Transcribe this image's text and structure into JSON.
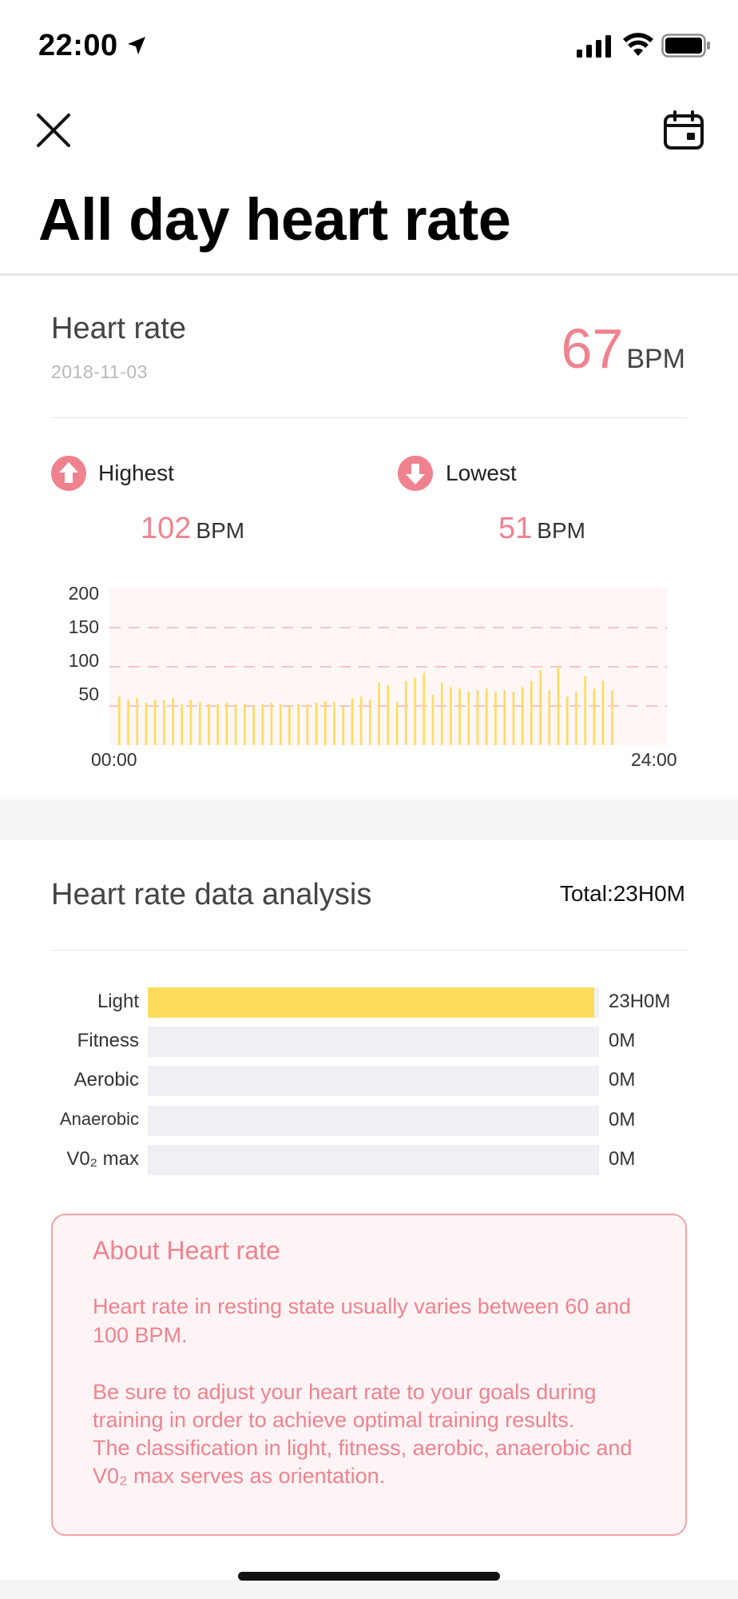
{
  "status_bar": {
    "time": "22:00",
    "icons": [
      "location-arrow-icon",
      "signal-icon",
      "wifi-icon",
      "battery-icon"
    ]
  },
  "nav": {
    "close_icon": "close-icon",
    "calendar_icon": "calendar-icon"
  },
  "title": "All day heart rate",
  "heart_rate": {
    "label": "Heart rate",
    "date": "2018-11-03",
    "value": "67",
    "unit": "BPM",
    "highest": {
      "label": "Highest",
      "value": "102",
      "unit": "BPM",
      "icon": "arrow-up-circle-icon"
    },
    "lowest": {
      "label": "Lowest",
      "value": "51",
      "unit": "BPM",
      "icon": "arrow-down-circle-icon"
    }
  },
  "chart_data": {
    "type": "bar",
    "x_start_label": "00:00",
    "x_end_label": "24:00",
    "y_ticks": [
      200,
      150,
      100,
      50
    ],
    "ylim": [
      0,
      200
    ],
    "grid": "dashed at 50, 100, 150",
    "bar_color": "#fddc5c",
    "values": [
      62,
      58,
      60,
      54,
      58,
      57,
      60,
      52,
      58,
      55,
      53,
      52,
      54,
      52,
      53,
      50,
      52,
      54,
      52,
      50,
      53,
      52,
      54,
      56,
      55,
      50,
      60,
      62,
      58,
      80,
      76,
      55,
      82,
      86,
      92,
      64,
      80,
      74,
      72,
      68,
      70,
      72,
      68,
      70,
      68,
      74,
      82,
      96,
      70,
      100,
      62,
      68,
      88,
      72,
      82,
      70
    ]
  },
  "analysis": {
    "title": "Heart rate data analysis",
    "total": "Total:23H0M",
    "zones": [
      {
        "label": "Light",
        "value": "23H0M",
        "fraction": 0.99
      },
      {
        "label": "Fitness",
        "value": "0M",
        "fraction": 0
      },
      {
        "label": "Aerobic",
        "value": "0M",
        "fraction": 0
      },
      {
        "label": "Anaerobic",
        "value": "0M",
        "fraction": 0
      },
      {
        "label": "V0₂ max",
        "value": "0M",
        "fraction": 0
      }
    ]
  },
  "about": {
    "title": "About Heart rate",
    "paragraph1": "Heart rate in resting state usually varies between 60 and 100 BPM.",
    "paragraph2": "Be sure to adjust your heart rate to your goals during training in order to achieve optimal training results.",
    "paragraph3": "The classification in light, fitness, aerobic, anaerobic and V0₂ max serves as orientation."
  },
  "colors": {
    "accent": "#f0828f",
    "bar": "#fddc5c",
    "track": "#efeff4"
  }
}
